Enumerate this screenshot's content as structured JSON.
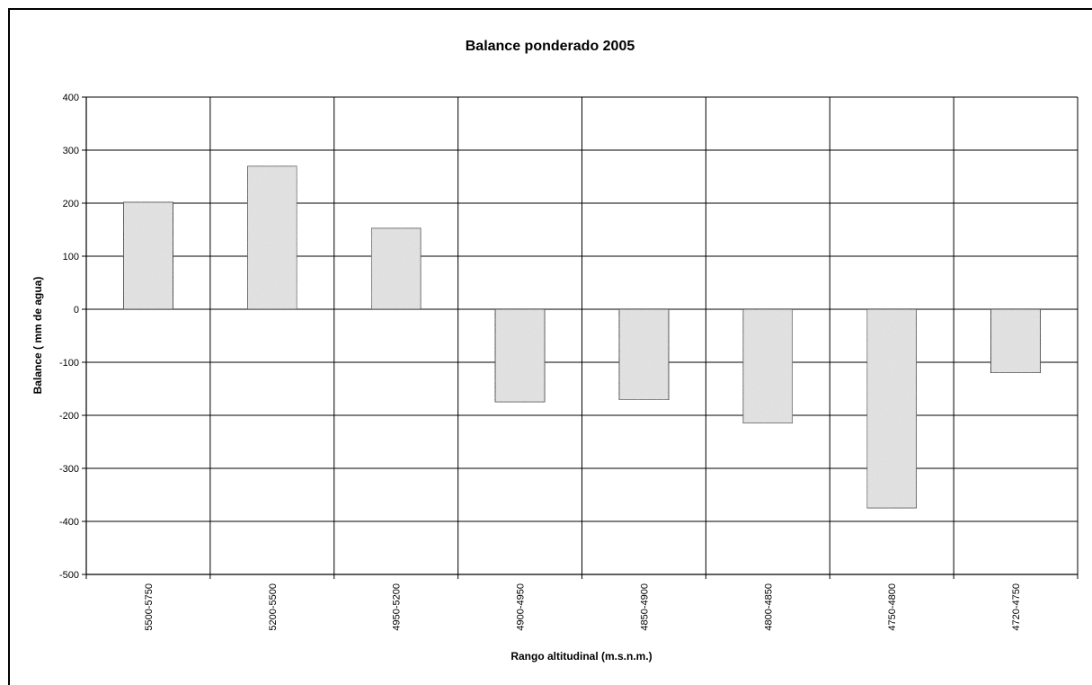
{
  "chart_data": {
    "type": "bar",
    "title": "Balance ponderado 2005",
    "xlabel": "Rango altitudinal (m.s.n.m.)",
    "ylabel": "Balance ( mm de agua)",
    "categories": [
      "5500-5750",
      "5200-5500",
      "4950-5200",
      "4900-4950",
      "4850-4900",
      "4800-4850",
      "4750-4800",
      "4720-4750"
    ],
    "values": [
      202,
      270,
      153,
      -175,
      -171,
      -215,
      -375,
      -120
    ],
    "ylim": [
      -500,
      400
    ],
    "yticks": [
      "400",
      "300",
      "200",
      "100",
      "0",
      "-100",
      "-200",
      "-300",
      "-400",
      "-500"
    ],
    "grid": true,
    "legend": "none",
    "bar_fill": "#e6e6e6",
    "bar_stroke": "#000000"
  }
}
